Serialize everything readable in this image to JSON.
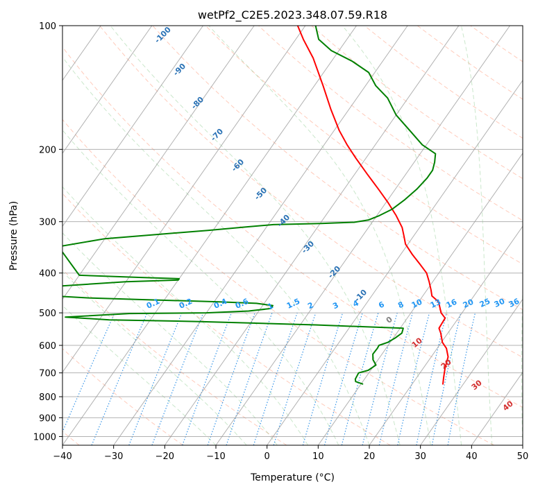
{
  "chart_data": {
    "type": "line",
    "subtype": "skew-t log-p",
    "title": "wetPf2_C2E5.2023.348.07.59.R18",
    "xlabel": "Temperature (°C)",
    "ylabel": "Pressure (hPa)",
    "xlim": [
      -40,
      50
    ],
    "ylim": [
      1050,
      100
    ],
    "x_ticks": [
      -40,
      -30,
      -20,
      -10,
      0,
      10,
      20,
      30,
      40,
      50
    ],
    "y_ticks": [
      100,
      200,
      300,
      400,
      500,
      600,
      700,
      800,
      900,
      1000
    ],
    "series": [
      {
        "name": "Temperature",
        "color": "#ff0000",
        "points": [
          {
            "p": 745,
            "t": 26.0
          },
          {
            "p": 720,
            "t": 25.3
          },
          {
            "p": 680,
            "t": 24.2
          },
          {
            "p": 640,
            "t": 23.3
          },
          {
            "p": 610,
            "t": 21.8
          },
          {
            "p": 590,
            "t": 20.2
          },
          {
            "p": 560,
            "t": 18.6
          },
          {
            "p": 545,
            "t": 17.6
          },
          {
            "p": 530,
            "t": 17.5
          },
          {
            "p": 515,
            "t": 17.4
          },
          {
            "p": 500,
            "t": 15.9
          },
          {
            "p": 470,
            "t": 13.9
          },
          {
            "p": 455,
            "t": 11.8
          },
          {
            "p": 440,
            "t": 10.8
          },
          {
            "p": 420,
            "t": 9.3
          },
          {
            "p": 400,
            "t": 7.6
          },
          {
            "p": 380,
            "t": 5.0
          },
          {
            "p": 360,
            "t": 2.2
          },
          {
            "p": 340,
            "t": -0.5
          },
          {
            "p": 325,
            "t": -1.9
          },
          {
            "p": 310,
            "t": -3.4
          },
          {
            "p": 290,
            "t": -6.2
          },
          {
            "p": 270,
            "t": -9.5
          },
          {
            "p": 250,
            "t": -13.3
          },
          {
            "p": 230,
            "t": -17.5
          },
          {
            "p": 210,
            "t": -22.0
          },
          {
            "p": 195,
            "t": -25.5
          },
          {
            "p": 180,
            "t": -29.0
          },
          {
            "p": 160,
            "t": -33.5
          },
          {
            "p": 140,
            "t": -38.3
          },
          {
            "p": 120,
            "t": -44.0
          },
          {
            "p": 108,
            "t": -48.5
          },
          {
            "p": 100,
            "t": -51.5
          }
        ]
      },
      {
        "name": "Dewpoint",
        "color": "#008000",
        "points": [
          {
            "p": 745,
            "t": 10.3
          },
          {
            "p": 735,
            "t": 8.6
          },
          {
            "p": 725,
            "t": 8.2
          },
          {
            "p": 700,
            "t": 8.0
          },
          {
            "p": 690,
            "t": 9.5
          },
          {
            "p": 670,
            "t": 10.3
          },
          {
            "p": 650,
            "t": 9.0
          },
          {
            "p": 630,
            "t": 8.2
          },
          {
            "p": 610,
            "t": 8.3
          },
          {
            "p": 600,
            "t": 8.2
          },
          {
            "p": 590,
            "t": 9.5
          },
          {
            "p": 575,
            "t": 10.4
          },
          {
            "p": 560,
            "t": 11.0
          },
          {
            "p": 545,
            "t": 10.6
          },
          {
            "p": 535,
            "t": -7.0
          },
          {
            "p": 525,
            "t": -30.0
          },
          {
            "p": 520,
            "t": -48.0
          },
          {
            "p": 512,
            "t": -57.0
          },
          {
            "p": 502,
            "t": -45.0
          },
          {
            "p": 500,
            "t": -30.0
          },
          {
            "p": 495,
            "t": -22.0
          },
          {
            "p": 488,
            "t": -18.0
          },
          {
            "p": 480,
            "t": -18.0
          },
          {
            "p": 474,
            "t": -21.5
          },
          {
            "p": 470,
            "t": -29.0
          },
          {
            "p": 464,
            "t": -45.0
          },
          {
            "p": 460,
            "t": -55.0
          },
          {
            "p": 455,
            "t": -62.0
          },
          {
            "p": 430,
            "t": -62.0
          },
          {
            "p": 420,
            "t": -50.0
          },
          {
            "p": 416,
            "t": -40.0
          },
          {
            "p": 413,
            "t": -40.0
          },
          {
            "p": 410,
            "t": -48.0
          },
          {
            "p": 405,
            "t": -60.0
          },
          {
            "p": 345,
            "t": -68.0
          },
          {
            "p": 330,
            "t": -60.0
          },
          {
            "p": 322,
            "t": -50.0
          },
          {
            "p": 315,
            "t": -41.0
          },
          {
            "p": 309,
            "t": -34.0
          },
          {
            "p": 305,
            "t": -29.0
          },
          {
            "p": 303,
            "t": -19.8
          },
          {
            "p": 301,
            "t": -13.5
          },
          {
            "p": 297,
            "t": -11.0
          },
          {
            "p": 290,
            "t": -9.5
          },
          {
            "p": 280,
            "t": -7.9
          },
          {
            "p": 265,
            "t": -6.7
          },
          {
            "p": 250,
            "t": -5.8
          },
          {
            "p": 235,
            "t": -5.3
          },
          {
            "p": 225,
            "t": -5.3
          },
          {
            "p": 215,
            "t": -6.0
          },
          {
            "p": 205,
            "t": -7.0
          },
          {
            "p": 195,
            "t": -10.8
          },
          {
            "p": 180,
            "t": -15.2
          },
          {
            "p": 165,
            "t": -20.0
          },
          {
            "p": 150,
            "t": -24.0
          },
          {
            "p": 140,
            "t": -28.0
          },
          {
            "p": 130,
            "t": -31.2
          },
          {
            "p": 122,
            "t": -36.0
          },
          {
            "p": 115,
            "t": -41.5
          },
          {
            "p": 108,
            "t": -45.5
          },
          {
            "p": 100,
            "t": -48.0
          }
        ]
      }
    ],
    "background_lines": {
      "dry_adiabats_color": "#ff8c69",
      "moist_adiabats_color": "#66bb6a",
      "mixing_ratio_color": "#1e88e5",
      "isotherm_color": "#9e9e9e",
      "isobar_color": "#9e9e9e"
    },
    "annotations": {
      "dry_adiabat_labels": [
        "-100",
        "-90",
        "-80",
        "-70",
        "-60",
        "-50",
        "-40",
        "-30",
        "-20",
        "-10"
      ],
      "mixing_ratio_labels": [
        "0.1",
        "0.2",
        "0.4",
        "0.6",
        "1",
        "1.5",
        "2",
        "3",
        "4",
        "6",
        "8",
        "10",
        "13",
        "16",
        "20",
        "25",
        "30",
        "36"
      ],
      "moist_adiabat_labels": [
        "0",
        "10",
        "20",
        "30",
        "40"
      ]
    }
  }
}
